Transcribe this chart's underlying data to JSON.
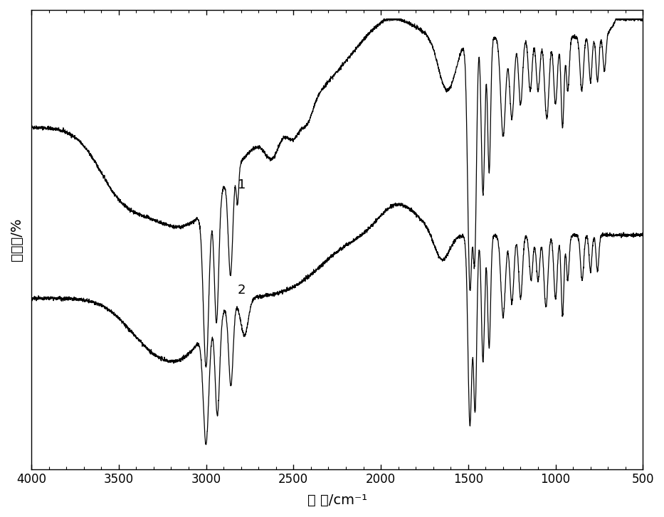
{
  "title": "",
  "xlabel": "波 数/cm⁻¹",
  "ylabel": "透过率/%",
  "xlim": [
    4000,
    500
  ],
  "xticklabels": [
    "4000",
    "3500",
    "3000",
    "2500",
    "2000",
    "1500",
    "1000",
    "500"
  ],
  "xticks": [
    4000,
    3500,
    3000,
    2500,
    2000,
    1500,
    1000,
    500
  ],
  "background_color": "#ffffff",
  "line_color": "#000000",
  "label1": "1",
  "label2": "2",
  "figsize": [
    9.33,
    7.27
  ],
  "dpi": 100,
  "ylim": [
    0.0,
    1.0
  ]
}
